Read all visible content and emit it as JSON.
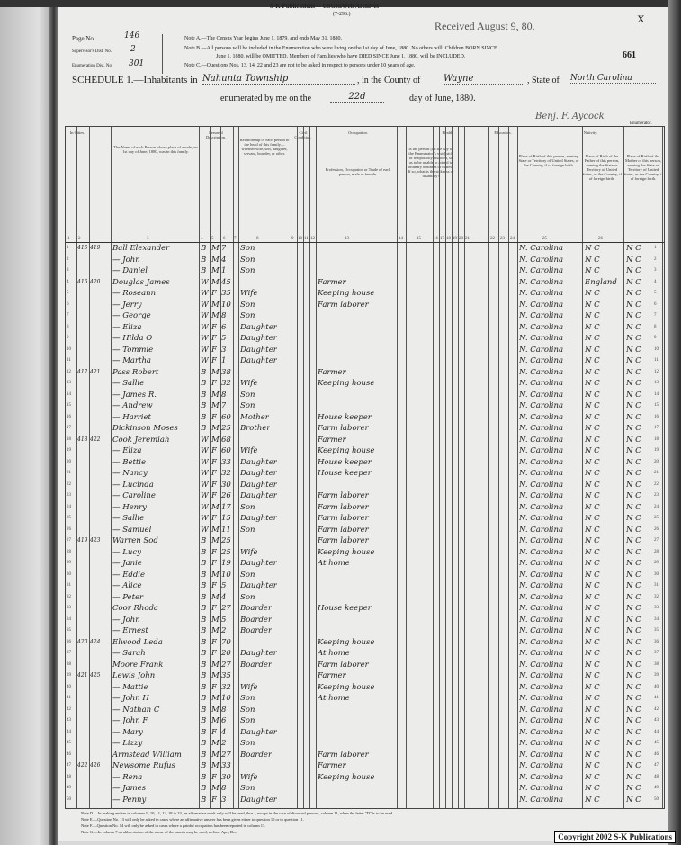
{
  "publisher": "S-K Publications -- USGenWeb Archives",
  "form_number": "(7-296.)",
  "received_stamp": "Received August 9, 80.",
  "corner_mark": "X",
  "stamped_page_number": "661",
  "page_no_label": "Page No.",
  "page_no": "146",
  "supervisor_dist_label": "Supervisor's Dist. No.",
  "supervisor_dist": "2",
  "enumeration_dist_label": "Enumeration Dist. No.",
  "enumeration_dist": "301",
  "notes": [
    "Note A.—The Census Year begins June 1, 1879, and ends May 31, 1880.",
    "Note B.—All persons will be included in the Enumeration who were living on the 1st day of June, 1880. No others will. Children BORN SINCE",
    "June 1, 1880, will be OMITTED. Members of Families who have DIED SINCE June 1, 1880, will be INCLUDED.",
    "Note C.—Questions Nos. 13, 14, 22 and 23 are not to be asked in respect to persons under 10 years of age."
  ],
  "schedule_label": "SCHEDULE 1.—Inhabitants in",
  "township": "Nahunta Township",
  "county_label": ", in the County of",
  "county": "Wayne",
  "state_label": ", State of",
  "state": "North Carolina",
  "enumerated_label": "enumerated by me on the",
  "enumerated_day": "22d",
  "day_label": "day of June, 1880.",
  "enumerator_signature": "Benj. F. Aycock",
  "enumerator_label": "Enumerator.",
  "column_headers": {
    "in_cities": "In Cities.",
    "name": "The Name of each Person whose place of abode, on 1st day of June, 1880, was in this family.",
    "personal": "Personal Description.",
    "relationship": "Relationship of each person to the head of this family—whether wife, son, daughter, servant, boarder, or other.",
    "civil": "Civil Condition.",
    "occupation_group": "Occupation.",
    "occupation": "Profession, Occupation or Trade of each person, male or female.",
    "health": "Health.",
    "sickness": "Is the person [on the day of the Enumerator's visit] sick or temporarily disabled, so as to be unable to attend to ordinary business or duties? If so, what is the sickness or disability?",
    "education": "Education.",
    "nativity": "Nativity.",
    "birthplace": "Place of Birth of this person, naming State or Territory of United States, or the Country, if of foreign birth.",
    "father_birthplace": "Place of Birth of the Father of this person, naming the State or Territory of United States, or the Country, if of foreign birth.",
    "mother_birthplace": "Place of Birth of the Mother of this person, naming the State or Territory of United States, or the Country, if of foreign birth."
  },
  "column_numbers": [
    "1",
    "2",
    "3",
    "4",
    "5",
    "6",
    "7",
    "8",
    "9",
    "10",
    "11",
    "12",
    "13",
    "14",
    "15",
    "16",
    "17",
    "18",
    "19",
    "20",
    "21",
    "22",
    "23",
    "24",
    "25",
    "26"
  ],
  "rows": [
    {
      "line": "1",
      "dwelling": "415",
      "family": "419",
      "name": "Ball Elexander",
      "color": "B",
      "sex": "M",
      "age": "7",
      "relation": "Son",
      "occupation": "",
      "birth": "N. Carolina",
      "father": "N C",
      "mother": "N C"
    },
    {
      "line": "2",
      "dwelling": "",
      "family": "",
      "name": "— John",
      "color": "B",
      "sex": "M",
      "age": "4",
      "relation": "Son",
      "occupation": "",
      "birth": "N. Carolina",
      "father": "N C",
      "mother": "N C"
    },
    {
      "line": "3",
      "dwelling": "",
      "family": "",
      "name": "— Daniel",
      "color": "B",
      "sex": "M",
      "age": "1",
      "relation": "Son",
      "occupation": "",
      "birth": "N. Carolina",
      "father": "N C",
      "mother": "N C"
    },
    {
      "line": "4",
      "dwelling": "416",
      "family": "420",
      "name": "Douglas James",
      "color": "W",
      "sex": "M",
      "age": "45",
      "relation": "",
      "occupation": "Farmer",
      "birth": "N. Carolina",
      "father": "England",
      "mother": "N C"
    },
    {
      "line": "5",
      "dwelling": "",
      "family": "",
      "name": "— Roseann",
      "color": "W",
      "sex": "F",
      "age": "35",
      "relation": "Wife",
      "occupation": "Keeping house",
      "birth": "N. Carolina",
      "father": "N C",
      "mother": "N C"
    },
    {
      "line": "6",
      "dwelling": "",
      "family": "",
      "name": "— Jerry",
      "color": "W",
      "sex": "M",
      "age": "10",
      "relation": "Son",
      "occupation": "Farm laborer",
      "birth": "N. Carolina",
      "father": "N C",
      "mother": "N C"
    },
    {
      "line": "7",
      "dwelling": "",
      "family": "",
      "name": "— George",
      "color": "W",
      "sex": "M",
      "age": "8",
      "relation": "Son",
      "occupation": "",
      "birth": "N. Carolina",
      "father": "N C",
      "mother": "N C"
    },
    {
      "line": "8",
      "dwelling": "",
      "family": "",
      "name": "— Eliza",
      "color": "W",
      "sex": "F",
      "age": "6",
      "relation": "Daughter",
      "occupation": "",
      "birth": "N. Carolina",
      "father": "N C",
      "mother": "N C"
    },
    {
      "line": "9",
      "dwelling": "",
      "family": "",
      "name": "— Hilda O",
      "color": "W",
      "sex": "F",
      "age": "5",
      "relation": "Daughter",
      "occupation": "",
      "birth": "N. Carolina",
      "father": "N C",
      "mother": "N C"
    },
    {
      "line": "10",
      "dwelling": "",
      "family": "",
      "name": "— Tommie",
      "color": "W",
      "sex": "F",
      "age": "3",
      "relation": "Daughter",
      "occupation": "",
      "birth": "N. Carolina",
      "father": "N C",
      "mother": "N C"
    },
    {
      "line": "11",
      "dwelling": "",
      "family": "",
      "name": "— Martha",
      "color": "W",
      "sex": "F",
      "age": "1",
      "relation": "Daughter",
      "occupation": "",
      "birth": "N. Carolina",
      "father": "N C",
      "mother": "N C"
    },
    {
      "line": "12",
      "dwelling": "417",
      "family": "421",
      "name": "Pass Robert",
      "color": "B",
      "sex": "M",
      "age": "38",
      "relation": "",
      "occupation": "Farmer",
      "birth": "N. Carolina",
      "father": "N C",
      "mother": "N C"
    },
    {
      "line": "13",
      "dwelling": "",
      "family": "",
      "name": "— Sallie",
      "color": "B",
      "sex": "F",
      "age": "32",
      "relation": "Wife",
      "occupation": "Keeping house",
      "birth": "N. Carolina",
      "father": "N C",
      "mother": "N C"
    },
    {
      "line": "14",
      "dwelling": "",
      "family": "",
      "name": "— James R.",
      "color": "B",
      "sex": "M",
      "age": "8",
      "relation": "Son",
      "occupation": "",
      "birth": "N. Carolina",
      "father": "N C",
      "mother": "N C"
    },
    {
      "line": "15",
      "dwelling": "",
      "family": "",
      "name": "— Andrew",
      "color": "B",
      "sex": "M",
      "age": "7",
      "relation": "Son",
      "occupation": "",
      "birth": "N. Carolina",
      "father": "N C",
      "mother": "N C"
    },
    {
      "line": "16",
      "dwelling": "",
      "family": "",
      "name": "— Harriet",
      "color": "B",
      "sex": "F",
      "age": "60",
      "relation": "Mother",
      "occupation": "House keeper",
      "birth": "N. Carolina",
      "father": "N C",
      "mother": "N C"
    },
    {
      "line": "17",
      "dwelling": "",
      "family": "",
      "name": "Dickinson Moses",
      "color": "B",
      "sex": "M",
      "age": "25",
      "relation": "Brother",
      "occupation": "Farm laborer",
      "birth": "N. Carolina",
      "father": "N C",
      "mother": "N C"
    },
    {
      "line": "18",
      "dwelling": "418",
      "family": "422",
      "name": "Cook Jeremiah",
      "color": "W",
      "sex": "M",
      "age": "68",
      "relation": "",
      "occupation": "Farmer",
      "birth": "N. Carolina",
      "father": "N C",
      "mother": "N C"
    },
    {
      "line": "19",
      "dwelling": "",
      "family": "",
      "name": "— Eliza",
      "color": "W",
      "sex": "F",
      "age": "60",
      "relation": "Wife",
      "occupation": "Keeping house",
      "birth": "N. Carolina",
      "father": "N C",
      "mother": "N C"
    },
    {
      "line": "20",
      "dwelling": "",
      "family": "",
      "name": "— Bettie",
      "color": "W",
      "sex": "F",
      "age": "33",
      "relation": "Daughter",
      "occupation": "House keeper",
      "birth": "N. Carolina",
      "father": "N C",
      "mother": "N C"
    },
    {
      "line": "21",
      "dwelling": "",
      "family": "",
      "name": "— Nancy",
      "color": "W",
      "sex": "F",
      "age": "32",
      "relation": "Daughter",
      "occupation": "House keeper",
      "birth": "N. Carolina",
      "father": "N C",
      "mother": "N C"
    },
    {
      "line": "22",
      "dwelling": "",
      "family": "",
      "name": "— Lucinda",
      "color": "W",
      "sex": "F",
      "age": "30",
      "relation": "Daughter",
      "occupation": "",
      "birth": "N. Carolina",
      "father": "N C",
      "mother": "N C"
    },
    {
      "line": "23",
      "dwelling": "",
      "family": "",
      "name": "— Caroline",
      "color": "W",
      "sex": "F",
      "age": "26",
      "relation": "Daughter",
      "occupation": "Farm laborer",
      "birth": "N. Carolina",
      "father": "N C",
      "mother": "N C"
    },
    {
      "line": "24",
      "dwelling": "",
      "family": "",
      "name": "— Henry",
      "color": "W",
      "sex": "M",
      "age": "17",
      "relation": "Son",
      "occupation": "Farm laborer",
      "birth": "N. Carolina",
      "father": "N C",
      "mother": "N C"
    },
    {
      "line": "25",
      "dwelling": "",
      "family": "",
      "name": "— Sallie",
      "color": "W",
      "sex": "F",
      "age": "15",
      "relation": "Daughter",
      "occupation": "Farm laborer",
      "birth": "N. Carolina",
      "father": "N C",
      "mother": "N C"
    },
    {
      "line": "26",
      "dwelling": "",
      "family": "",
      "name": "— Samuel",
      "color": "W",
      "sex": "M",
      "age": "11",
      "relation": "Son",
      "occupation": "Farm laborer",
      "birth": "N. Carolina",
      "father": "N C",
      "mother": "N C"
    },
    {
      "line": "27",
      "dwelling": "419",
      "family": "423",
      "name": "Warren Sod",
      "color": "B",
      "sex": "M",
      "age": "25",
      "relation": "",
      "occupation": "Farm laborer",
      "birth": "N. Carolina",
      "father": "N C",
      "mother": "N C"
    },
    {
      "line": "28",
      "dwelling": "",
      "family": "",
      "name": "— Lucy",
      "color": "B",
      "sex": "F",
      "age": "25",
      "relation": "Wife",
      "occupation": "Keeping house",
      "birth": "N. Carolina",
      "father": "N C",
      "mother": "N C"
    },
    {
      "line": "29",
      "dwelling": "",
      "family": "",
      "name": "— Janie",
      "color": "B",
      "sex": "F",
      "age": "19",
      "relation": "Daughter",
      "occupation": "At home",
      "birth": "N. Carolina",
      "father": "N C",
      "mother": "N C"
    },
    {
      "line": "30",
      "dwelling": "",
      "family": "",
      "name": "— Eddie",
      "color": "B",
      "sex": "M",
      "age": "10",
      "relation": "Son",
      "occupation": "",
      "birth": "N. Carolina",
      "father": "N C",
      "mother": "N C"
    },
    {
      "line": "31",
      "dwelling": "",
      "family": "",
      "name": "— Alice",
      "color": "B",
      "sex": "F",
      "age": "5",
      "relation": "Daughter",
      "occupation": "",
      "birth": "N. Carolina",
      "father": "N C",
      "mother": "N C"
    },
    {
      "line": "32",
      "dwelling": "",
      "family": "",
      "name": "— Peter",
      "color": "B",
      "sex": "M",
      "age": "4",
      "relation": "Son",
      "occupation": "",
      "birth": "N. Carolina",
      "father": "N C",
      "mother": "N C"
    },
    {
      "line": "33",
      "dwelling": "",
      "family": "",
      "name": "Coor Rhoda",
      "color": "B",
      "sex": "F",
      "age": "27",
      "relation": "Boarder",
      "occupation": "House keeper",
      "birth": "N. Carolina",
      "father": "N C",
      "mother": "N C"
    },
    {
      "line": "34",
      "dwelling": "",
      "family": "",
      "name": "— John",
      "color": "B",
      "sex": "M",
      "age": "5",
      "relation": "Boarder",
      "occupation": "",
      "birth": "N. Carolina",
      "father": "N C",
      "mother": "N C"
    },
    {
      "line": "35",
      "dwelling": "",
      "family": "",
      "name": "— Ernest",
      "color": "B",
      "sex": "M",
      "age": "2",
      "relation": "Boarder",
      "occupation": "",
      "birth": "N. Carolina",
      "father": "N C",
      "mother": "N C"
    },
    {
      "line": "36",
      "dwelling": "420",
      "family": "424",
      "name": "Elwood Leda",
      "color": "B",
      "sex": "F",
      "age": "70",
      "relation": "",
      "occupation": "Keeping house",
      "birth": "N. Carolina",
      "father": "N C",
      "mother": "N C"
    },
    {
      "line": "37",
      "dwelling": "",
      "family": "",
      "name": "— Sarah",
      "color": "B",
      "sex": "F",
      "age": "20",
      "relation": "Daughter",
      "occupation": "At home",
      "birth": "N. Carolina",
      "father": "N C",
      "mother": "N C"
    },
    {
      "line": "38",
      "dwelling": "",
      "family": "",
      "name": "Moore Frank",
      "color": "B",
      "sex": "M",
      "age": "27",
      "relation": "Boarder",
      "occupation": "Farm laborer",
      "birth": "N. Carolina",
      "father": "N C",
      "mother": "N C"
    },
    {
      "line": "39",
      "dwelling": "421",
      "family": "425",
      "name": "Lewis John",
      "color": "B",
      "sex": "M",
      "age": "35",
      "relation": "",
      "occupation": "Farmer",
      "birth": "N. Carolina",
      "father": "N C",
      "mother": "N C"
    },
    {
      "line": "40",
      "dwelling": "",
      "family": "",
      "name": "— Mattie",
      "color": "B",
      "sex": "F",
      "age": "32",
      "relation": "Wife",
      "occupation": "Keeping house",
      "birth": "N. Carolina",
      "father": "N C",
      "mother": "N C"
    },
    {
      "line": "41",
      "dwelling": "",
      "family": "",
      "name": "— John H",
      "color": "B",
      "sex": "M",
      "age": "10",
      "relation": "Son",
      "occupation": "At home",
      "birth": "N. Carolina",
      "father": "N C",
      "mother": "N C"
    },
    {
      "line": "42",
      "dwelling": "",
      "family": "",
      "name": "— Nathan C",
      "color": "B",
      "sex": "M",
      "age": "8",
      "relation": "Son",
      "occupation": "",
      "birth": "N. Carolina",
      "father": "N C",
      "mother": "N C"
    },
    {
      "line": "43",
      "dwelling": "",
      "family": "",
      "name": "— John F",
      "color": "B",
      "sex": "M",
      "age": "6",
      "relation": "Son",
      "occupation": "",
      "birth": "N. Carolina",
      "father": "N C",
      "mother": "N C"
    },
    {
      "line": "44",
      "dwelling": "",
      "family": "",
      "name": "— Mary",
      "color": "B",
      "sex": "F",
      "age": "4",
      "relation": "Daughter",
      "occupation": "",
      "birth": "N. Carolina",
      "father": "N C",
      "mother": "N C"
    },
    {
      "line": "45",
      "dwelling": "",
      "family": "",
      "name": "— Lizzy",
      "color": "B",
      "sex": "M",
      "age": "2",
      "relation": "Son",
      "occupation": "",
      "birth": "N. Carolina",
      "father": "N C",
      "mother": "N C"
    },
    {
      "line": "46",
      "dwelling": "",
      "family": "",
      "name": "Armstead William",
      "color": "B",
      "sex": "M",
      "age": "27",
      "relation": "Boarder",
      "occupation": "Farm laborer",
      "birth": "N. Carolina",
      "father": "N C",
      "mother": "N C"
    },
    {
      "line": "47",
      "dwelling": "422",
      "family": "426",
      "name": "Newsome Rufus",
      "color": "B",
      "sex": "M",
      "age": "33",
      "relation": "",
      "occupation": "Farmer",
      "birth": "N. Carolina",
      "father": "N C",
      "mother": "N C"
    },
    {
      "line": "48",
      "dwelling": "",
      "family": "",
      "name": "— Rena",
      "color": "B",
      "sex": "F",
      "age": "30",
      "relation": "Wife",
      "occupation": "Keeping house",
      "birth": "N. Carolina",
      "father": "N C",
      "mother": "N C"
    },
    {
      "line": "49",
      "dwelling": "",
      "family": "",
      "name": "— James",
      "color": "B",
      "sex": "M",
      "age": "8",
      "relation": "Son",
      "occupation": "",
      "birth": "N. Carolina",
      "father": "N C",
      "mother": "N C"
    },
    {
      "line": "50",
      "dwelling": "",
      "family": "",
      "name": "— Penny",
      "color": "B",
      "sex": "F",
      "age": "3",
      "relation": "Daughter",
      "occupation": "",
      "birth": "N. Carolina",
      "father": "N C",
      "mother": "N C"
    }
  ],
  "footer_notes": [
    "Note D.—In making entries in columns 9, 10, 11, 12, 18 to 23, an affirmative mark only will be used, thus /, except in the case of divorced persons, column 11, when the letter \"D\" is to be used.",
    "Note E.—Question No. 13 will only be asked in cases where an affirmative answer has been given either to question 10 or to question 11.",
    "Note F.—Question No. 14 will only be asked in cases where a gainful occupation has been reported in column 13.",
    "Note G.—In column 7 an abbreviation of the name of the month may be used, as Jan., Apr., Dec."
  ],
  "copyright": "Copyright 2002 S-K Publications"
}
